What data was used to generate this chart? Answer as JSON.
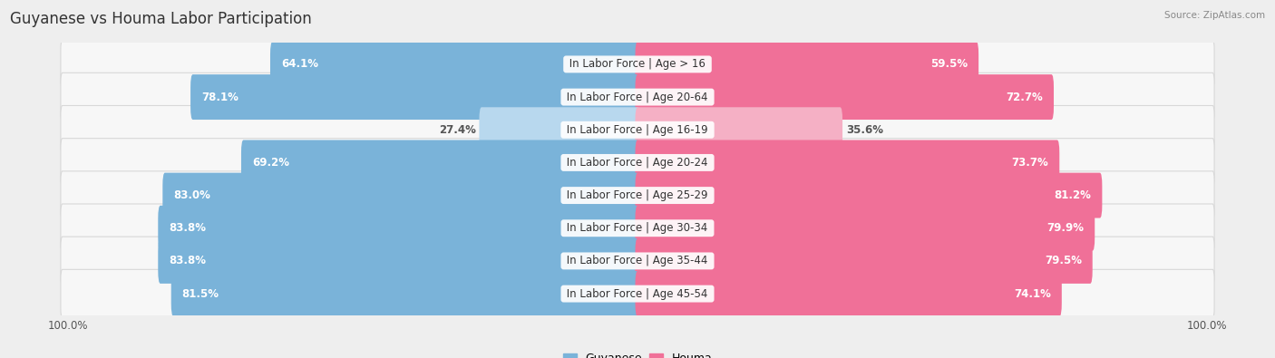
{
  "title": "Guyanese vs Houma Labor Participation",
  "source": "Source: ZipAtlas.com",
  "categories": [
    "In Labor Force | Age > 16",
    "In Labor Force | Age 20-64",
    "In Labor Force | Age 16-19",
    "In Labor Force | Age 20-24",
    "In Labor Force | Age 25-29",
    "In Labor Force | Age 30-34",
    "In Labor Force | Age 35-44",
    "In Labor Force | Age 45-54"
  ],
  "guyanese": [
    64.1,
    78.1,
    27.4,
    69.2,
    83.0,
    83.8,
    83.8,
    81.5
  ],
  "houma": [
    59.5,
    72.7,
    35.6,
    73.7,
    81.2,
    79.9,
    79.5,
    74.1
  ],
  "guyanese_color": "#7ab3d9",
  "houma_color": "#f07098",
  "guyanese_light_color": "#b8d8ee",
  "houma_light_color": "#f5b0c5",
  "bg_color": "#eeeeee",
  "row_bg": "#f7f7f7",
  "row_border": "#d8d8d8",
  "max_val": 100.0,
  "title_fontsize": 12,
  "label_fontsize": 8.5,
  "value_fontsize": 8.5,
  "tick_fontsize": 8.5,
  "legend_fontsize": 9
}
